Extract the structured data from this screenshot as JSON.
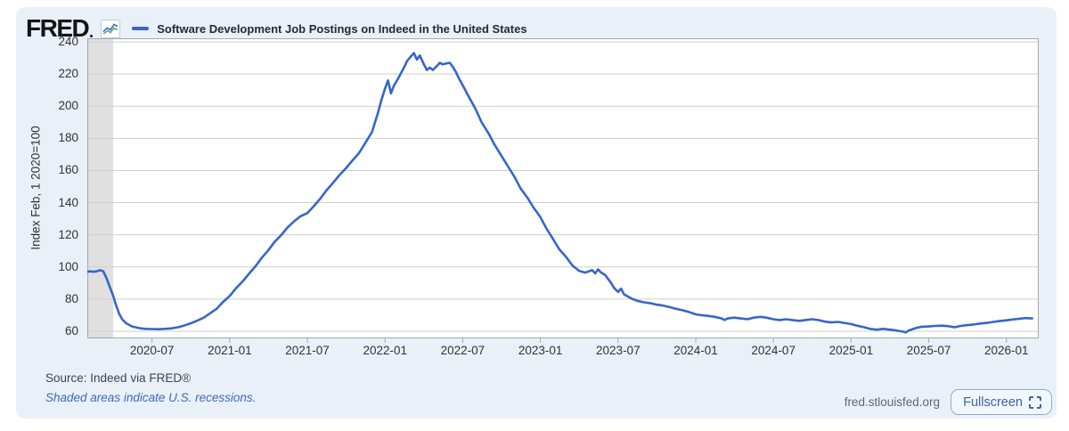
{
  "header": {
    "brand": "FRED",
    "legend_label": "Software Development Job Postings on Indeed in the United States"
  },
  "footer": {
    "source": "Source: Indeed via FRED®",
    "recession_note": "Shaded areas indicate U.S. recessions.",
    "site": "fred.stlouisfed.org",
    "fullscreen_label": "Fullscreen"
  },
  "colors": {
    "card_bg": "#e9f0f8",
    "plot_bg": "#ffffff",
    "grid": "#cfcfcf",
    "plot_border": "#a8a8a8",
    "recession_band": "#e0e0e0",
    "line": "#3766c9",
    "link_blue": "#3d6bbf"
  },
  "chart_data": {
    "type": "line",
    "title": "Software Development Job Postings on Indeed in the United States",
    "xlabel": "",
    "ylabel": "Index Feb, 1 2020=100",
    "yticks": [
      60,
      80,
      100,
      120,
      140,
      160,
      180,
      200,
      220,
      240
    ],
    "ylim_visible": [
      55.6,
      242.2
    ],
    "grid": true,
    "legend_position": "top-left",
    "x_min": "2020-02-01",
    "x_max": "2026-03-16",
    "xticks": [
      "2020-07",
      "2021-01",
      "2021-07",
      "2022-01",
      "2022-07",
      "2023-01",
      "2023-07",
      "2024-01",
      "2024-07",
      "2025-01",
      "2025-07",
      "2026-01"
    ],
    "recession_bands": [
      [
        "2020-02-01",
        "2020-04-01"
      ]
    ],
    "series": [
      {
        "name": "Software Development Job Postings on Indeed in the United States",
        "color": "#3766c9",
        "dates": [
          "2020-02-01",
          "2020-02-08",
          "2020-02-15",
          "2020-02-22",
          "2020-03-01",
          "2020-03-08",
          "2020-03-15",
          "2020-03-22",
          "2020-04-01",
          "2020-04-08",
          "2020-04-15",
          "2020-04-22",
          "2020-05-01",
          "2020-05-15",
          "2020-06-01",
          "2020-06-15",
          "2020-07-01",
          "2020-07-15",
          "2020-08-01",
          "2020-08-15",
          "2020-09-01",
          "2020-09-15",
          "2020-10-01",
          "2020-10-15",
          "2020-11-01",
          "2020-11-15",
          "2020-12-01",
          "2020-12-15",
          "2021-01-01",
          "2021-01-15",
          "2021-02-01",
          "2021-02-15",
          "2021-03-01",
          "2021-03-15",
          "2021-04-01",
          "2021-04-15",
          "2021-05-01",
          "2021-05-15",
          "2021-06-01",
          "2021-06-15",
          "2021-07-01",
          "2021-07-15",
          "2021-08-01",
          "2021-08-15",
          "2021-09-01",
          "2021-09-15",
          "2021-10-01",
          "2021-10-15",
          "2021-11-01",
          "2021-11-15",
          "2021-12-01",
          "2021-12-08",
          "2021-12-15",
          "2021-12-22",
          "2022-01-01",
          "2022-01-08",
          "2022-01-15",
          "2022-01-22",
          "2022-02-01",
          "2022-02-08",
          "2022-02-15",
          "2022-02-22",
          "2022-03-01",
          "2022-03-08",
          "2022-03-15",
          "2022-03-22",
          "2022-04-01",
          "2022-04-08",
          "2022-04-15",
          "2022-04-22",
          "2022-05-01",
          "2022-05-08",
          "2022-05-15",
          "2022-05-22",
          "2022-06-01",
          "2022-06-08",
          "2022-06-15",
          "2022-06-22",
          "2022-07-01",
          "2022-07-15",
          "2022-08-01",
          "2022-08-15",
          "2022-09-01",
          "2022-09-15",
          "2022-10-01",
          "2022-10-15",
          "2022-11-01",
          "2022-11-15",
          "2022-12-01",
          "2022-12-15",
          "2023-01-01",
          "2023-01-15",
          "2023-02-01",
          "2023-02-15",
          "2023-03-01",
          "2023-03-15",
          "2023-04-01",
          "2023-04-15",
          "2023-05-01",
          "2023-05-08",
          "2023-05-15",
          "2023-05-22",
          "2023-06-01",
          "2023-06-15",
          "2023-06-22",
          "2023-07-01",
          "2023-07-08",
          "2023-07-15",
          "2023-08-01",
          "2023-08-15",
          "2023-09-01",
          "2023-09-15",
          "2023-10-01",
          "2023-10-15",
          "2023-11-01",
          "2023-11-15",
          "2023-12-01",
          "2023-12-15",
          "2024-01-01",
          "2024-01-15",
          "2024-02-01",
          "2024-02-15",
          "2024-03-01",
          "2024-03-08",
          "2024-03-15",
          "2024-04-01",
          "2024-04-15",
          "2024-05-01",
          "2024-05-15",
          "2024-06-01",
          "2024-06-15",
          "2024-07-01",
          "2024-07-15",
          "2024-08-01",
          "2024-08-15",
          "2024-09-01",
          "2024-09-15",
          "2024-10-01",
          "2024-10-15",
          "2024-11-01",
          "2024-11-15",
          "2024-12-01",
          "2024-12-15",
          "2025-01-01",
          "2025-01-15",
          "2025-02-01",
          "2025-02-15",
          "2025-03-01",
          "2025-03-15",
          "2025-04-01",
          "2025-04-15",
          "2025-05-01",
          "2025-05-08",
          "2025-05-15",
          "2025-06-01",
          "2025-06-15",
          "2025-07-01",
          "2025-07-15",
          "2025-08-01",
          "2025-08-15",
          "2025-09-01",
          "2025-09-15",
          "2025-10-01",
          "2025-10-15",
          "2025-11-01",
          "2025-11-15",
          "2025-12-01",
          "2025-12-15",
          "2026-01-01",
          "2026-01-15",
          "2026-02-01",
          "2026-02-15",
          "2026-03-01"
        ],
        "values": [
          97,
          97.3,
          97,
          97.2,
          98,
          97.3,
          93.5,
          88.5,
          82,
          76,
          71,
          67.5,
          65,
          63,
          62,
          61.5,
          61.4,
          61.3,
          61.5,
          61.8,
          62.5,
          63.5,
          65,
          66.5,
          68.5,
          71,
          74,
          78,
          82,
          86.5,
          91,
          95.5,
          100.5,
          105.5,
          110.5,
          115.5,
          120,
          124.5,
          128.5,
          131.5,
          133.5,
          137.5,
          142.5,
          147.5,
          152.5,
          157,
          161.5,
          166,
          171,
          177,
          184,
          190,
          196,
          203,
          211,
          216,
          208,
          213,
          217,
          220.5,
          224,
          228,
          231,
          233,
          229,
          231.5,
          226,
          222.5,
          224,
          222.5,
          225,
          227,
          226,
          226.5,
          227,
          224.5,
          221.5,
          217.5,
          213,
          206,
          198,
          190,
          183,
          176,
          169,
          163,
          156,
          149,
          143,
          137,
          131,
          124,
          117,
          111,
          106,
          101,
          97.5,
          96.5,
          98,
          96,
          98.5,
          96.5,
          95,
          90,
          87,
          84.5,
          86.5,
          83,
          80.5,
          79,
          78,
          77.5,
          76.5,
          76,
          75,
          74,
          73,
          72,
          70.5,
          70,
          69.5,
          69,
          68,
          67,
          68,
          68.5,
          68,
          67.5,
          68.5,
          69,
          68.5,
          67.5,
          67,
          67.5,
          67,
          66.5,
          67,
          67.5,
          67,
          66,
          65.5,
          65.8,
          65.2,
          64.5,
          63.5,
          62.5,
          61.5,
          61,
          61.5,
          61,
          60.5,
          59.8,
          59.3,
          60.5,
          62,
          62.8,
          63,
          63.3,
          63.5,
          63.2,
          62.5,
          63.3,
          63.8,
          64.2,
          64.8,
          65.2,
          65.8,
          66.3,
          66.8,
          67.3,
          67.8,
          68.2,
          68
        ]
      }
    ]
  }
}
